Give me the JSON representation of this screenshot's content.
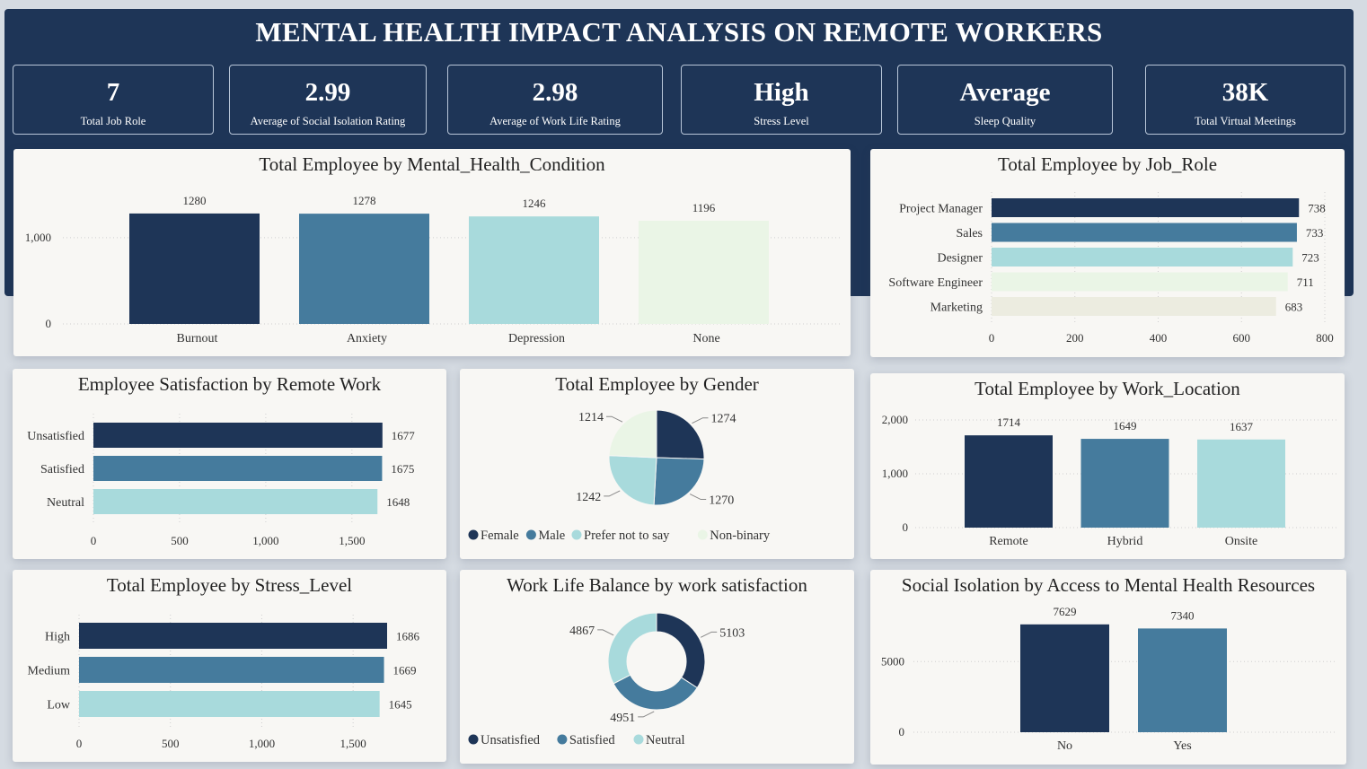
{
  "title": "MENTAL HEALTH IMPACT ANALYSIS ON REMOTE WORKERS",
  "kpis": [
    {
      "value": "7",
      "label": "Total Job  Role"
    },
    {
      "value": "2.99",
      "label": "Average of Social  Isolation  Rating"
    },
    {
      "value": "2.98",
      "label": "Average of Work  Life Rating"
    },
    {
      "value": "High",
      "label": "Stress  Level"
    },
    {
      "value": "Average",
      "label": "Sleep  Quality"
    },
    {
      "value": "38K",
      "label": "Total  Virtual  Meetings"
    }
  ],
  "colors": {
    "navy": "#1e3557",
    "steel": "#457b9d",
    "aqua": "#a8dadc",
    "mint": "#eaf5e6",
    "beige": "#ecece0",
    "banner": "#1e3557"
  },
  "chart_data": [
    {
      "id": "mental_health",
      "type": "bar",
      "title": "Total Employee by Mental_Health_Condition",
      "categories": [
        "Burnout",
        "Anxiety",
        "Depression",
        "None"
      ],
      "values": [
        1280,
        1278,
        1246,
        1196
      ],
      "data_labels": [
        "1280",
        "1278",
        "1246",
        "1196"
      ],
      "y_ticks": [
        "0",
        "1,000"
      ],
      "ylim": [
        0,
        1300
      ],
      "grid": true,
      "colors": [
        "#1e3557",
        "#457b9d",
        "#a8dadc",
        "#eaf5e6"
      ]
    },
    {
      "id": "job_role",
      "type": "bar",
      "orientation": "horizontal",
      "title": "Total Employee by Job_Role",
      "categories": [
        "Project Manager",
        "Sales",
        "Designer",
        "Software Engineer",
        "Marketing"
      ],
      "values": [
        738,
        733,
        723,
        711,
        683
      ],
      "data_labels": [
        "738",
        "733",
        "723",
        "711",
        "683"
      ],
      "x_ticks": [
        "0",
        "200",
        "400",
        "600",
        "800"
      ],
      "xlim": [
        0,
        800
      ],
      "grid": true,
      "colors": [
        "#1e3557",
        "#457b9d",
        "#a8dadc",
        "#eaf5e6",
        "#ecece0"
      ]
    },
    {
      "id": "satisfaction",
      "type": "bar",
      "orientation": "horizontal",
      "title": "Employee Satisfaction by Remote Work",
      "categories": [
        "Unsatisfied",
        "Satisfied",
        "Neutral"
      ],
      "values": [
        1677,
        1675,
        1648
      ],
      "data_labels": [
        "1677",
        "1675",
        "1648"
      ],
      "x_ticks": [
        "0",
        "500",
        "1,000",
        "1,500"
      ],
      "xlim": [
        0,
        1850
      ],
      "grid": true,
      "colors": [
        "#1e3557",
        "#457b9d",
        "#a8dadc"
      ]
    },
    {
      "id": "gender",
      "type": "pie",
      "title": "Total Employee by Gender",
      "categories": [
        "Female",
        "Male",
        "Prefer not to say",
        "Non-binary"
      ],
      "values": [
        1274,
        1270,
        1242,
        1214
      ],
      "data_labels": [
        "1274",
        "1270",
        "1242",
        "1214"
      ],
      "legend": "bottom",
      "colors": [
        "#1e3557",
        "#457b9d",
        "#a8dadc",
        "#eaf5e6"
      ]
    },
    {
      "id": "work_location",
      "type": "bar",
      "title": "Total Employee by Work_Location",
      "categories": [
        "Remote",
        "Hybrid",
        "Onsite"
      ],
      "values": [
        1714,
        1649,
        1637
      ],
      "data_labels": [
        "1714",
        "1649",
        "1637"
      ],
      "y_ticks": [
        "0",
        "1,000",
        "2,000"
      ],
      "ylim": [
        0,
        2000
      ],
      "grid": true,
      "colors": [
        "#1e3557",
        "#457b9d",
        "#a8dadc"
      ]
    },
    {
      "id": "stress_level",
      "type": "bar",
      "orientation": "horizontal",
      "title": "Total Employee by Stress_Level",
      "categories": [
        "High",
        "Medium",
        "Low"
      ],
      "values": [
        1686,
        1669,
        1645
      ],
      "data_labels": [
        "1686",
        "1669",
        "1645"
      ],
      "x_ticks": [
        "0",
        "500",
        "1,000",
        "1,500"
      ],
      "xlim": [
        0,
        1686
      ],
      "grid": true,
      "colors": [
        "#1e3557",
        "#457b9d",
        "#a8dadc"
      ]
    },
    {
      "id": "work_life",
      "type": "pie",
      "donut": true,
      "title": "Work Life Balance by work satisfaction",
      "categories": [
        "Unsatisfied",
        "Satisfied",
        "Neutral"
      ],
      "values": [
        5103,
        4951,
        4867
      ],
      "data_labels": [
        "5103",
        "4951",
        "4867"
      ],
      "legend": "bottom",
      "colors": [
        "#1e3557",
        "#457b9d",
        "#a8dadc"
      ]
    },
    {
      "id": "social_isolation",
      "type": "bar",
      "title": "Social Isolation by Access to Mental Health Resources",
      "categories": [
        "No",
        "Yes"
      ],
      "values": [
        7629,
        7340
      ],
      "data_labels": [
        "7629",
        "7340"
      ],
      "y_ticks": [
        "0",
        "5000"
      ],
      "ylim": [
        0,
        8000
      ],
      "grid": true,
      "colors": [
        "#1e3557",
        "#457b9d"
      ]
    }
  ]
}
